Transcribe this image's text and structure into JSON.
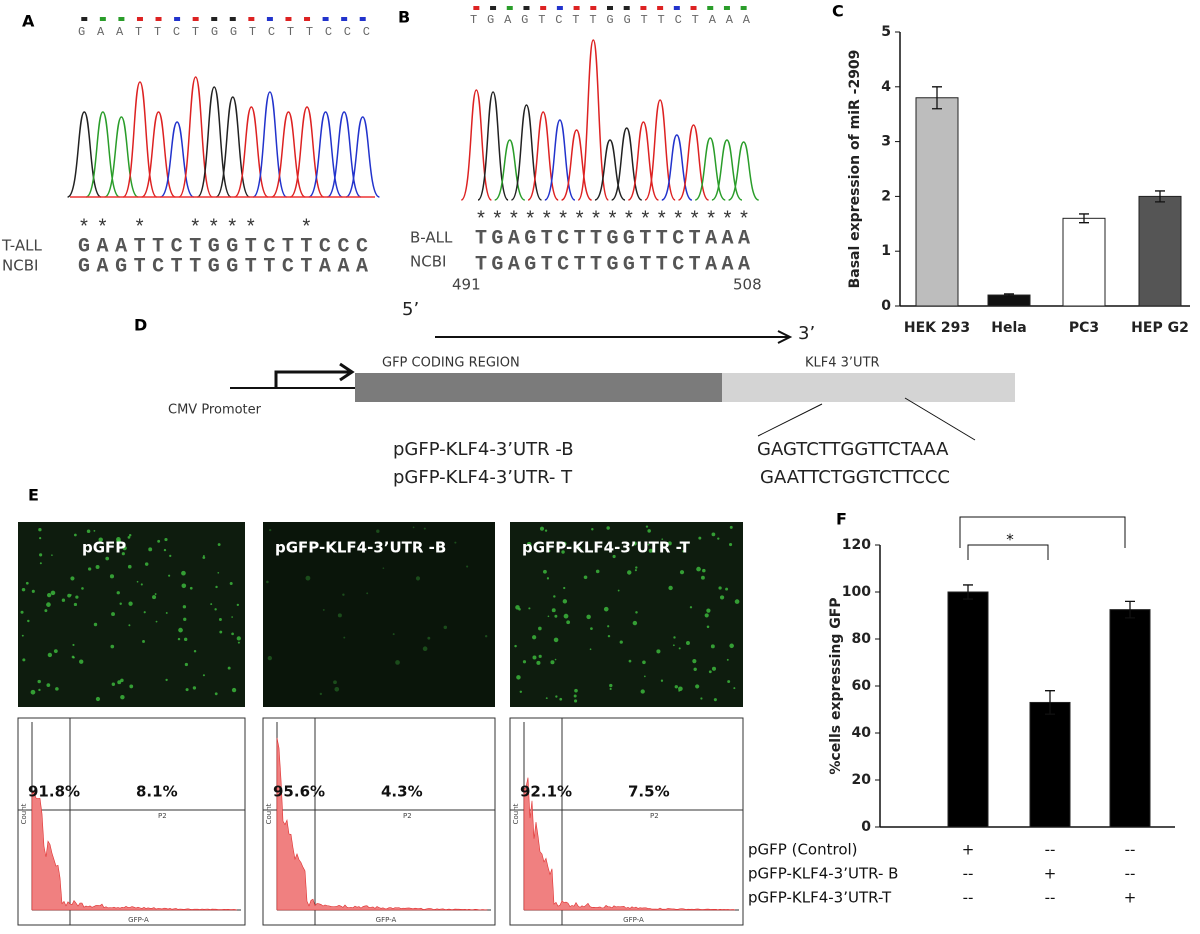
{
  "panel_labels": {
    "a": "A",
    "b": "B",
    "c": "C",
    "d": "D",
    "e": "E",
    "f": "F"
  },
  "panel_a": {
    "bases": "GAATTCTGGTCTTCCC",
    "stars": "** *  ****  *   ",
    "row1_label": "T-ALL",
    "row1_seq": "GAATTCTGGTCTTCCC",
    "row2_label": "NCBI",
    "row2_seq": "GAGTCTTGGTTCTAAA"
  },
  "panel_b": {
    "bases": "TGAGTCTTGGTTCTAAA",
    "stars": "*****************",
    "row1_label": "B-ALL",
    "row1_seq": "TGAGTCTTGGTTCTAAA",
    "row2_label": "NCBI",
    "row2_seq": "TGAGTCTTGGTTCTAAA",
    "start": "491",
    "end": "508"
  },
  "panel_d": {
    "five_prime": "5’",
    "three_prime": "3’",
    "gfp_region": "GFP  CODING REGION",
    "utr_region": "KLF4 3’UTR",
    "promoter": "CMV Promoter",
    "construct_b": "pGFP-KLF4-3’UTR -B",
    "construct_t": "pGFP-KLF4-3’UTR- T",
    "seq_b": "GAGTCTTGGTTCTAAA",
    "seq_t": "GAATTCTGGTCTTCCC"
  },
  "panel_e": {
    "images": [
      {
        "label": "pGFP",
        "gate_left": "91.8%",
        "gate_right": "8.1%"
      },
      {
        "label": "pGFP-KLF4-3’UTR -B",
        "gate_left": "95.6%",
        "gate_right": "4.3%"
      },
      {
        "label": "pGFP-KLF4-3’UTR -T",
        "gate_left": "92.1%",
        "gate_right": "7.5%"
      }
    ],
    "y_axis": "Count",
    "x_axis": "GFP-A",
    "gate_name": "P2"
  },
  "chart_data": [
    {
      "type": "bar",
      "y_label": "Basal expression of miR -2909",
      "categories": [
        "HEK 293",
        "Hela",
        "PC3",
        "HEP G2"
      ],
      "values": [
        3.8,
        0.2,
        1.6,
        2.0
      ],
      "errors": [
        0.2,
        0.02,
        0.08,
        0.1
      ],
      "colors": [
        "#bdbdbd",
        "#111111",
        "#ffffff",
        "#555555"
      ],
      "ylim": [
        0,
        5
      ],
      "yticks": [
        0,
        1,
        2,
        3,
        4,
        5
      ]
    },
    {
      "type": "bar",
      "y_label": "%cells expressing GFP",
      "values": [
        100,
        53,
        92.5
      ],
      "errors": [
        3,
        5,
        3.5
      ],
      "colors": [
        "#000000",
        "#000000",
        "#000000"
      ],
      "ylim": [
        0,
        120
      ],
      "yticks": [
        0,
        20,
        40,
        60,
        80,
        100,
        120
      ],
      "significance": "*",
      "conditions": [
        {
          "name": "pGFP (Control)",
          "marks": [
            "+",
            "--",
            "--"
          ]
        },
        {
          "name": "pGFP-KLF4-3’UTR- B",
          "marks": [
            "--",
            "+",
            "--"
          ]
        },
        {
          "name": "pGFP-KLF4-3’UTR-T",
          "marks": [
            "--",
            "--",
            "+"
          ]
        }
      ]
    }
  ]
}
